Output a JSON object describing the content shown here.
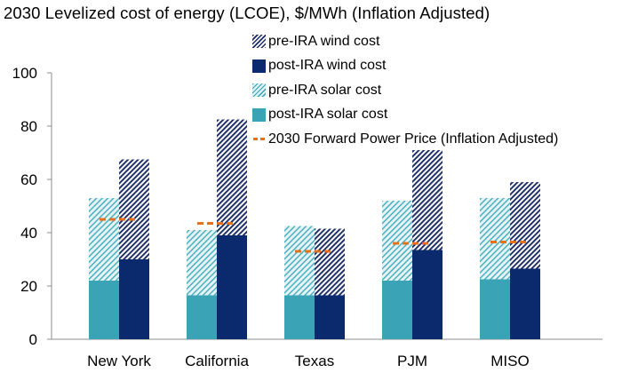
{
  "chart_data": {
    "type": "bar",
    "title": "2030 Levelized cost of energy (LCOE), $/MWh (Inflation Adjusted)",
    "xlabel": "",
    "ylabel": "",
    "ylim": [
      0,
      100
    ],
    "yticks": [
      0,
      20,
      40,
      60,
      80,
      100
    ],
    "categories": [
      "New York",
      "California",
      "Texas",
      "PJM",
      "MISO"
    ],
    "series": [
      {
        "name": "pre-IRA wind cost",
        "values": [
          67.5,
          82.5,
          41.5,
          71,
          59
        ],
        "style": "hatched",
        "color": "#1a2a62"
      },
      {
        "name": "post-IRA wind cost",
        "values": [
          30,
          39,
          16.5,
          33.5,
          26.5
        ],
        "style": "solid",
        "color": "#0b2a6e"
      },
      {
        "name": "pre-IRA solar cost",
        "values": [
          53,
          41,
          42.5,
          52,
          53
        ],
        "style": "hatched",
        "color": "#2ea3b5"
      },
      {
        "name": "post-IRA solar cost",
        "values": [
          22,
          16.5,
          16.5,
          22,
          22.5
        ],
        "style": "solid",
        "color": "#3aa4b6"
      },
      {
        "name": "2030 Forward Power Price (Inflation Adjusted)",
        "values": [
          45,
          43.5,
          33,
          36,
          36.5
        ],
        "style": "dashed-line",
        "color": "#e8701a"
      }
    ],
    "legend_position": "top-center"
  },
  "legend": [
    {
      "label": "pre-IRA wind cost"
    },
    {
      "label": "post-IRA wind cost"
    },
    {
      "label": "pre-IRA solar cost"
    },
    {
      "label": "post-IRA solar cost"
    },
    {
      "label": "2030 Forward Power Price (Inflation Adjusted)"
    }
  ]
}
